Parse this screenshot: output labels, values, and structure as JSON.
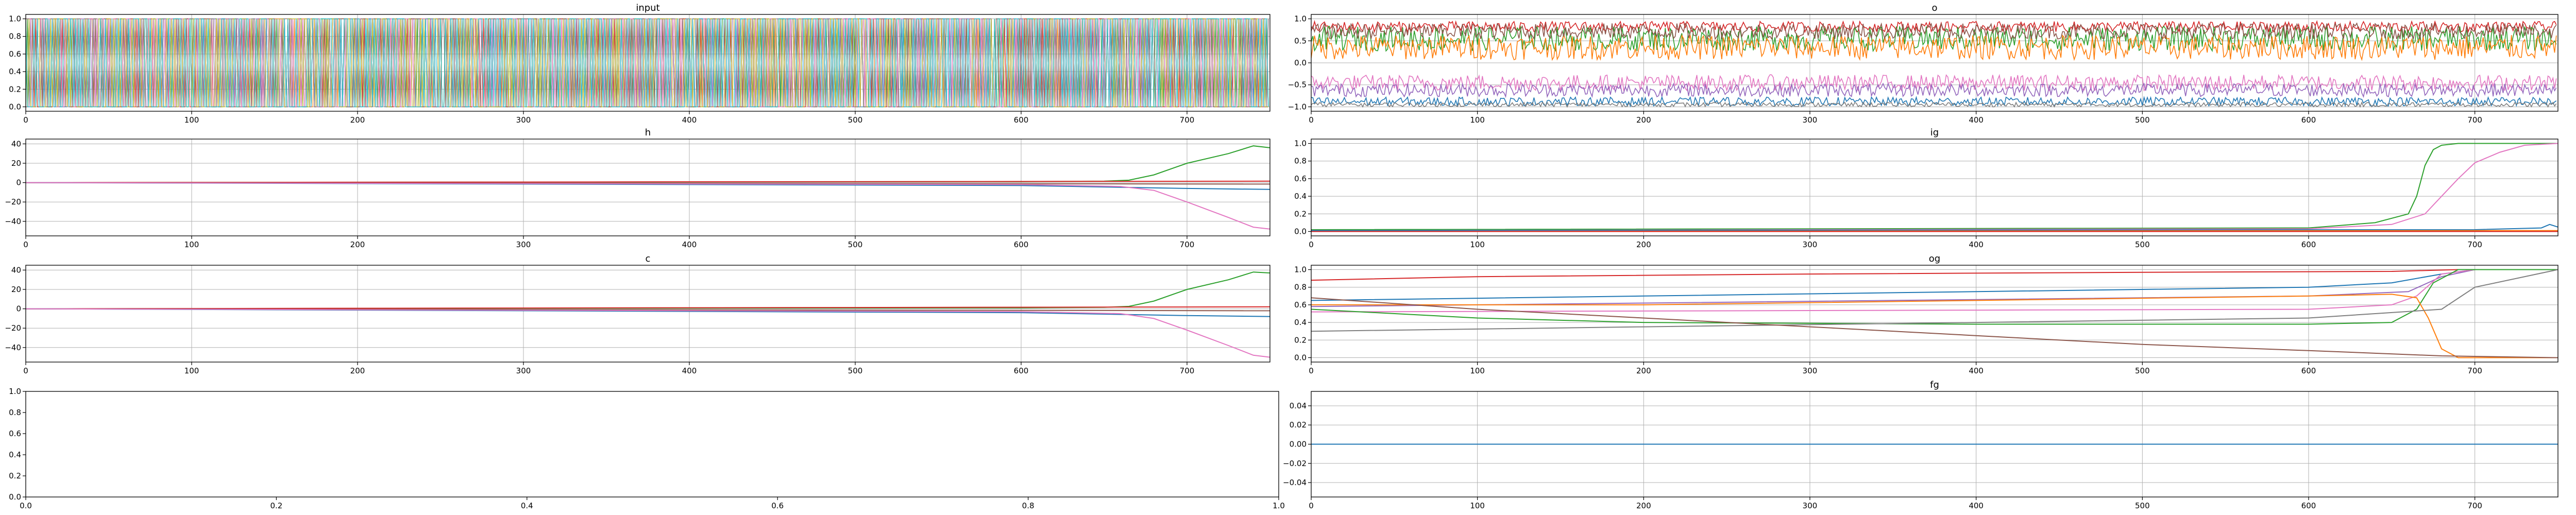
{
  "colors": [
    "#1f77b4",
    "#ff7f0e",
    "#2ca02c",
    "#d62728",
    "#9467bd",
    "#8c564b",
    "#e377c2",
    "#7f7f7f",
    "#bcbd22",
    "#17becf"
  ],
  "chart_data": [
    {
      "id": "input",
      "type": "line",
      "title": "input",
      "xlim": [
        0,
        750
      ],
      "ylim": [
        -0.05,
        1.05
      ],
      "xticks": [
        0,
        100,
        200,
        300,
        400,
        500,
        600,
        700
      ],
      "yticks": [
        0.0,
        0.2,
        0.4,
        0.6,
        0.8,
        1.0
      ],
      "ytick_labels": [
        "0.0",
        "0.2",
        "0.4",
        "0.6",
        "0.8",
        "1.0"
      ],
      "grid": true,
      "binary_steps": 750,
      "binary_series_count": 10
    },
    {
      "id": "o",
      "type": "line",
      "title": "o",
      "xlim": [
        0,
        750
      ],
      "ylim": [
        -1.1,
        1.1
      ],
      "xticks": [
        0,
        100,
        200,
        300,
        400,
        500,
        600,
        700
      ],
      "yticks": [
        -1.0,
        -0.5,
        0.0,
        0.5,
        1.0
      ],
      "ytick_labels": [
        "−1.0",
        "−0.5",
        "0.0",
        "0.5",
        "1.0"
      ],
      "grid": true,
      "noise_series": [
        {
          "color": "#d62728",
          "mean": 0.82,
          "amp": 0.12
        },
        {
          "color": "#2ca02c",
          "mean": 0.55,
          "amp": 0.28
        },
        {
          "color": "#ff7f0e",
          "mean": 0.35,
          "amp": 0.28
        },
        {
          "color": "#8c564b",
          "mean": 0.72,
          "amp": 0.18
        },
        {
          "color": "#e377c2",
          "mean": -0.45,
          "amp": 0.18
        },
        {
          "color": "#9467bd",
          "mean": -0.62,
          "amp": 0.15
        },
        {
          "color": "#1f77b4",
          "mean": -0.88,
          "amp": 0.1
        },
        {
          "color": "#7f7f7f",
          "mean": -0.95,
          "amp": 0.05
        }
      ]
    },
    {
      "id": "h",
      "type": "line",
      "title": "h",
      "xlim": [
        0,
        750
      ],
      "ylim": [
        -55,
        45
      ],
      "xticks": [
        0,
        100,
        200,
        300,
        400,
        500,
        600,
        700
      ],
      "yticks": [
        -40,
        -20,
        0,
        20,
        40
      ],
      "ytick_labels": [
        "−40",
        "−20",
        "0",
        "20",
        "40"
      ],
      "grid": true,
      "series": [
        {
          "color": "#2ca02c",
          "x": [
            0,
            600,
            650,
            665,
            680,
            700,
            725,
            740,
            750
          ],
          "y": [
            0,
            1,
            1.5,
            2.5,
            8,
            20,
            30,
            38,
            36
          ]
        },
        {
          "color": "#d62728",
          "x": [
            0,
            750
          ],
          "y": [
            0,
            1.5
          ]
        },
        {
          "color": "#8c564b",
          "x": [
            0,
            750
          ],
          "y": [
            0,
            -1.5
          ]
        },
        {
          "color": "#1f77b4",
          "x": [
            0,
            600,
            700,
            750
          ],
          "y": [
            0,
            -3,
            -6,
            -7
          ]
        },
        {
          "color": "#e377c2",
          "x": [
            0,
            600,
            660,
            680,
            700,
            725,
            740,
            750
          ],
          "y": [
            0,
            -2,
            -4,
            -8,
            -20,
            -36,
            -46,
            -48
          ]
        }
      ]
    },
    {
      "id": "ig",
      "type": "line",
      "title": "ig",
      "xlim": [
        0,
        750
      ],
      "ylim": [
        -0.05,
        1.05
      ],
      "xticks": [
        0,
        100,
        200,
        300,
        400,
        500,
        600,
        700
      ],
      "yticks": [
        0.0,
        0.2,
        0.4,
        0.6,
        0.8,
        1.0
      ],
      "ytick_labels": [
        "0.0",
        "0.2",
        "0.4",
        "0.6",
        "0.8",
        "1.0"
      ],
      "grid": true,
      "series": [
        {
          "color": "#2ca02c",
          "x": [
            0,
            600,
            640,
            660,
            665,
            670,
            675,
            680,
            690,
            750
          ],
          "y": [
            0.02,
            0.04,
            0.1,
            0.2,
            0.4,
            0.75,
            0.93,
            0.98,
            1.0,
            1.0
          ]
        },
        {
          "color": "#e377c2",
          "x": [
            0,
            600,
            650,
            670,
            680,
            690,
            700,
            715,
            730,
            750
          ],
          "y": [
            0.01,
            0.03,
            0.08,
            0.2,
            0.4,
            0.6,
            0.78,
            0.9,
            0.98,
            1.0
          ]
        },
        {
          "color": "#1f77b4",
          "x": [
            0,
            700,
            740,
            745,
            750
          ],
          "y": [
            0.01,
            0.02,
            0.04,
            0.08,
            0.05
          ]
        },
        {
          "color": "#ff7f0e",
          "x": [
            0,
            750
          ],
          "y": [
            0.0,
            0.01
          ]
        },
        {
          "color": "#d62728",
          "x": [
            0,
            750
          ],
          "y": [
            0.0,
            0.0
          ]
        }
      ]
    },
    {
      "id": "c",
      "type": "line",
      "title": "c",
      "xlim": [
        0,
        750
      ],
      "ylim": [
        -55,
        45
      ],
      "xticks": [
        0,
        100,
        200,
        300,
        400,
        500,
        600,
        700
      ],
      "yticks": [
        -40,
        -20,
        0,
        20,
        40
      ],
      "ytick_labels": [
        "−40",
        "−20",
        "0",
        "20",
        "40"
      ],
      "grid": true,
      "series": [
        {
          "color": "#2ca02c",
          "x": [
            0,
            600,
            650,
            665,
            680,
            700,
            725,
            740,
            750
          ],
          "y": [
            0,
            1,
            1.5,
            2.5,
            8,
            20,
            30,
            38,
            37
          ]
        },
        {
          "color": "#d62728",
          "x": [
            0,
            750
          ],
          "y": [
            0,
            2
          ]
        },
        {
          "color": "#8c564b",
          "x": [
            0,
            750
          ],
          "y": [
            0,
            -2
          ]
        },
        {
          "color": "#1f77b4",
          "x": [
            0,
            600,
            700,
            750
          ],
          "y": [
            0,
            -4,
            -7,
            -8
          ]
        },
        {
          "color": "#e377c2",
          "x": [
            0,
            600,
            660,
            680,
            700,
            725,
            740,
            750
          ],
          "y": [
            0,
            -3,
            -5,
            -10,
            -22,
            -38,
            -48,
            -50
          ]
        }
      ]
    },
    {
      "id": "og",
      "type": "line",
      "title": "og",
      "xlim": [
        0,
        750
      ],
      "ylim": [
        -0.05,
        1.05
      ],
      "xticks": [
        0,
        100,
        200,
        300,
        400,
        500,
        600,
        700
      ],
      "yticks": [
        0.0,
        0.2,
        0.4,
        0.6,
        0.8,
        1.0
      ],
      "ytick_labels": [
        "0.0",
        "0.2",
        "0.4",
        "0.6",
        "0.8",
        "1.0"
      ],
      "grid": true,
      "series": [
        {
          "color": "#d62728",
          "x": [
            0,
            100,
            300,
            500,
            650,
            690,
            750
          ],
          "y": [
            0.88,
            0.92,
            0.95,
            0.97,
            0.98,
            1.0,
            1.0
          ]
        },
        {
          "color": "#1f77b4",
          "x": [
            0,
            200,
            400,
            600,
            650,
            680,
            700,
            750
          ],
          "y": [
            0.65,
            0.7,
            0.75,
            0.8,
            0.85,
            0.95,
            1.0,
            1.0
          ]
        },
        {
          "color": "#9467bd",
          "x": [
            0,
            200,
            400,
            600,
            660,
            680,
            700,
            750
          ],
          "y": [
            0.58,
            0.62,
            0.66,
            0.7,
            0.75,
            0.92,
            1.0,
            1.0
          ]
        },
        {
          "color": "#e377c2",
          "x": [
            0,
            200,
            400,
            600,
            650,
            665,
            680,
            700,
            750
          ],
          "y": [
            0.52,
            0.53,
            0.54,
            0.55,
            0.6,
            0.7,
            0.95,
            1.0,
            1.0
          ]
        },
        {
          "color": "#2ca02c",
          "x": [
            0,
            100,
            200,
            400,
            600,
            650,
            665,
            675,
            690,
            750
          ],
          "y": [
            0.55,
            0.45,
            0.4,
            0.38,
            0.38,
            0.4,
            0.55,
            0.85,
            1.0,
            1.0
          ]
        },
        {
          "color": "#ff7f0e",
          "x": [
            0,
            200,
            400,
            600,
            650,
            665,
            672,
            680,
            690,
            750
          ],
          "y": [
            0.6,
            0.6,
            0.65,
            0.7,
            0.72,
            0.68,
            0.45,
            0.1,
            0.0,
            0.0
          ]
        },
        {
          "color": "#7f7f7f",
          "x": [
            0,
            200,
            400,
            600,
            680,
            700,
            750
          ],
          "y": [
            0.3,
            0.35,
            0.4,
            0.45,
            0.55,
            0.8,
            1.0
          ]
        },
        {
          "color": "#8c564b",
          "x": [
            0,
            100,
            200,
            300,
            400,
            500,
            600,
            680,
            750
          ],
          "y": [
            0.68,
            0.55,
            0.45,
            0.35,
            0.25,
            0.15,
            0.08,
            0.02,
            0.0
          ]
        }
      ]
    },
    {
      "id": "empty",
      "type": "line",
      "title": "",
      "xlim": [
        0.0,
        1.0
      ],
      "ylim": [
        0.0,
        1.0
      ],
      "xticks": [
        0.0,
        0.2,
        0.4,
        0.6,
        0.8,
        1.0
      ],
      "xtick_labels": [
        "0.0",
        "0.2",
        "0.4",
        "0.6",
        "0.8",
        "1.0"
      ],
      "yticks": [
        0.0,
        0.2,
        0.4,
        0.6,
        0.8,
        1.0
      ],
      "ytick_labels": [
        "0.0",
        "0.2",
        "0.4",
        "0.6",
        "0.8",
        "1.0"
      ],
      "grid": false,
      "series": []
    },
    {
      "id": "fg",
      "type": "line",
      "title": "fg",
      "xlim": [
        0,
        750
      ],
      "ylim": [
        -0.055,
        0.055
      ],
      "xticks": [
        0,
        100,
        200,
        300,
        400,
        500,
        600,
        700
      ],
      "yticks": [
        -0.04,
        -0.02,
        0.0,
        0.02,
        0.04
      ],
      "ytick_labels": [
        "−0.04",
        "−0.02",
        "0.00",
        "0.02",
        "0.04"
      ],
      "grid": true,
      "series": [
        {
          "color": "#17becf",
          "x": [
            0,
            750
          ],
          "y": [
            0.0,
            0.0
          ]
        },
        {
          "color": "#1f77b4",
          "x": [
            0,
            750
          ],
          "y": [
            0.0,
            0.0
          ]
        }
      ]
    }
  ]
}
